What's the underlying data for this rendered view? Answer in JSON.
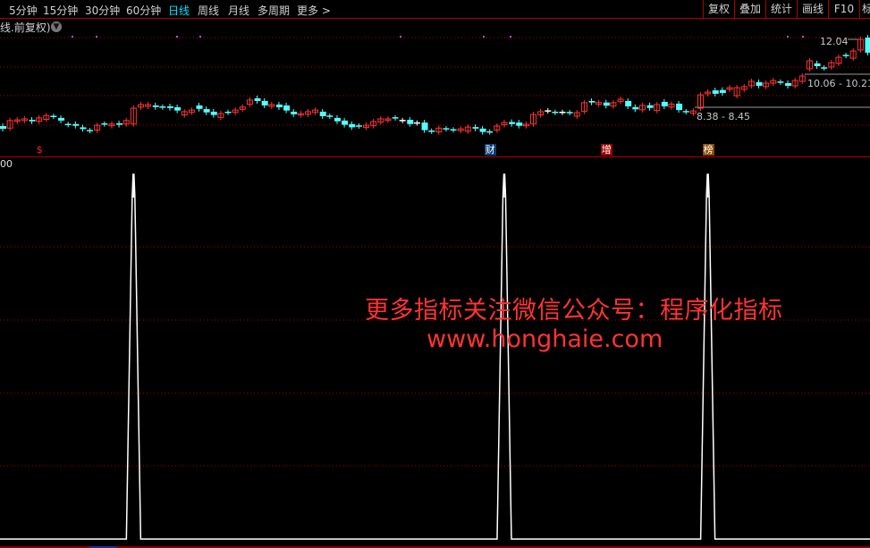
{
  "toolbar": {
    "periods": [
      {
        "label": "5分钟",
        "active": false
      },
      {
        "label": "15分钟",
        "active": false
      },
      {
        "label": "30分钟",
        "active": false
      },
      {
        "label": "60分钟",
        "active": false
      },
      {
        "label": "日线",
        "active": true
      },
      {
        "label": "周线",
        "active": false
      },
      {
        "label": "月线",
        "active": false
      },
      {
        "label": "多周期",
        "active": false
      },
      {
        "label": "更多 >",
        "active": false
      }
    ],
    "buttons": [
      "复权",
      "叠加",
      "统计",
      "画线",
      "F10",
      "标"
    ]
  },
  "subtitle": "线.前复权)",
  "colors": {
    "up": "#ff3333",
    "down": "#54ffff",
    "flat": "#ffffff",
    "grid": "#b00000",
    "accent": "#00e5ff",
    "watermark": "#ff3333"
  },
  "price_chart": {
    "scale": "log",
    "range_labels": {
      "low": "8.38 - 8.45",
      "mid": "10.06 - 10.21",
      "high": "12.04"
    },
    "candles_open_close": [
      [
        7.6,
        7.49
      ],
      [
        7.52,
        7.82
      ],
      [
        7.79,
        7.85
      ],
      [
        7.82,
        7.89
      ],
      [
        7.85,
        7.79
      ],
      [
        7.79,
        7.93
      ],
      [
        7.87,
        8.03
      ],
      [
        7.99,
        7.99
      ],
      [
        7.93,
        7.82
      ],
      [
        7.66,
        7.66
      ],
      [
        7.68,
        7.61
      ],
      [
        7.55,
        7.48
      ],
      [
        7.42,
        7.42
      ],
      [
        7.44,
        7.63
      ],
      [
        7.68,
        7.68
      ],
      [
        7.61,
        7.68
      ],
      [
        7.71,
        7.65
      ],
      [
        7.68,
        7.82
      ],
      [
        7.68,
        8.34
      ],
      [
        8.39,
        8.5
      ],
      [
        8.42,
        8.5
      ],
      [
        8.46,
        8.39
      ],
      [
        8.39,
        8.39
      ],
      [
        8.42,
        8.35
      ],
      [
        8.38,
        8.24
      ],
      [
        8.05,
        8.19
      ],
      [
        8.16,
        8.26
      ],
      [
        8.46,
        8.31
      ],
      [
        8.3,
        8.16
      ],
      [
        8.19,
        8.05
      ],
      [
        7.95,
        8.11
      ],
      [
        8.16,
        8.16
      ],
      [
        8.16,
        8.26
      ],
      [
        8.29,
        8.39
      ],
      [
        8.51,
        8.7
      ],
      [
        8.78,
        8.66
      ],
      [
        8.66,
        8.46
      ],
      [
        8.42,
        8.5
      ],
      [
        8.5,
        8.38
      ],
      [
        8.46,
        8.24
      ],
      [
        8.19,
        8.08
      ],
      [
        8.05,
        8.11
      ],
      [
        8.08,
        8.19
      ],
      [
        8.16,
        8.26
      ],
      [
        8.19,
        8.0
      ],
      [
        8.0,
        8.0
      ],
      [
        7.93,
        7.79
      ],
      [
        7.82,
        7.65
      ],
      [
        7.68,
        7.55
      ],
      [
        7.6,
        7.6
      ],
      [
        7.55,
        7.63
      ],
      [
        7.61,
        7.78
      ],
      [
        7.76,
        7.89
      ],
      [
        7.83,
        7.89
      ],
      [
        7.93,
        7.93
      ],
      [
        7.82,
        7.82
      ],
      [
        7.85,
        7.68
      ],
      [
        7.72,
        7.72
      ],
      [
        7.74,
        7.44
      ],
      [
        7.4,
        7.4
      ],
      [
        7.37,
        7.52
      ],
      [
        7.49,
        7.49
      ],
      [
        7.45,
        7.45
      ],
      [
        7.42,
        7.49
      ],
      [
        7.4,
        7.56
      ],
      [
        7.56,
        7.5
      ],
      [
        7.5,
        7.37
      ],
      [
        7.37,
        7.37
      ],
      [
        7.44,
        7.6
      ],
      [
        7.65,
        7.74
      ],
      [
        7.76,
        7.68
      ],
      [
        7.74,
        7.61
      ],
      [
        7.61,
        7.67
      ],
      [
        7.68,
        8.07
      ],
      [
        8.05,
        8.19
      ],
      [
        8.22,
        8.22
      ],
      [
        8.16,
        8.16
      ],
      [
        8.16,
        8.16
      ],
      [
        8.15,
        8.15
      ],
      [
        8.0,
        8.15
      ],
      [
        8.2,
        8.58
      ],
      [
        8.66,
        8.59
      ],
      [
        8.51,
        8.59
      ],
      [
        8.59,
        8.45
      ],
      [
        8.43,
        8.58
      ],
      [
        8.63,
        8.74
      ],
      [
        8.66,
        8.42
      ],
      [
        8.39,
        8.29
      ],
      [
        8.27,
        8.46
      ],
      [
        8.47,
        8.35
      ],
      [
        8.24,
        8.5
      ],
      [
        8.62,
        8.42
      ],
      [
        8.39,
        8.52
      ],
      [
        8.54,
        8.26
      ],
      [
        8.19,
        8.19
      ],
      [
        8.12,
        8.22
      ],
      [
        8.34,
        8.94
      ],
      [
        8.99,
        9.07
      ],
      [
        9.15,
        8.99
      ],
      [
        9.17,
        9.03
      ],
      [
        9.2,
        9.28
      ],
      [
        8.9,
        9.28
      ],
      [
        9.2,
        9.33
      ],
      [
        9.37,
        9.59
      ],
      [
        9.55,
        9.37
      ],
      [
        9.33,
        9.5
      ],
      [
        9.5,
        9.63
      ],
      [
        9.55,
        9.55
      ],
      [
        9.5,
        9.37
      ],
      [
        9.37,
        9.63
      ],
      [
        9.59,
        9.86
      ],
      [
        10.24,
        10.67
      ],
      [
        10.53,
        10.38
      ],
      [
        10.28,
        10.28
      ],
      [
        10.33,
        10.57
      ],
      [
        10.53,
        10.87
      ],
      [
        10.97,
        10.97
      ],
      [
        10.82,
        11.23
      ],
      [
        11.29,
        11.93
      ],
      [
        12.04,
        11.13
      ]
    ],
    "event_markers": [
      {
        "candle": 5,
        "label": "$",
        "bg": "#000000",
        "color": "#ff2222"
      },
      {
        "candle": 67,
        "label": "财",
        "bg": "#0a3a78",
        "color": "#ffffff"
      },
      {
        "candle": 83,
        "label": "增",
        "bg": "#a00000",
        "color": "#ffffff"
      },
      {
        "candle": 97,
        "label": "榜",
        "bg": "#8a4a00",
        "color": "#ffffff"
      }
    ]
  },
  "indicator": {
    "top_label": "00",
    "spike_candles": [
      18,
      69,
      97
    ],
    "spike_value": 100
  },
  "watermark": {
    "line1": "更多指标关注微信公众号：程序化指标",
    "line2": "www.honghaie.com"
  }
}
